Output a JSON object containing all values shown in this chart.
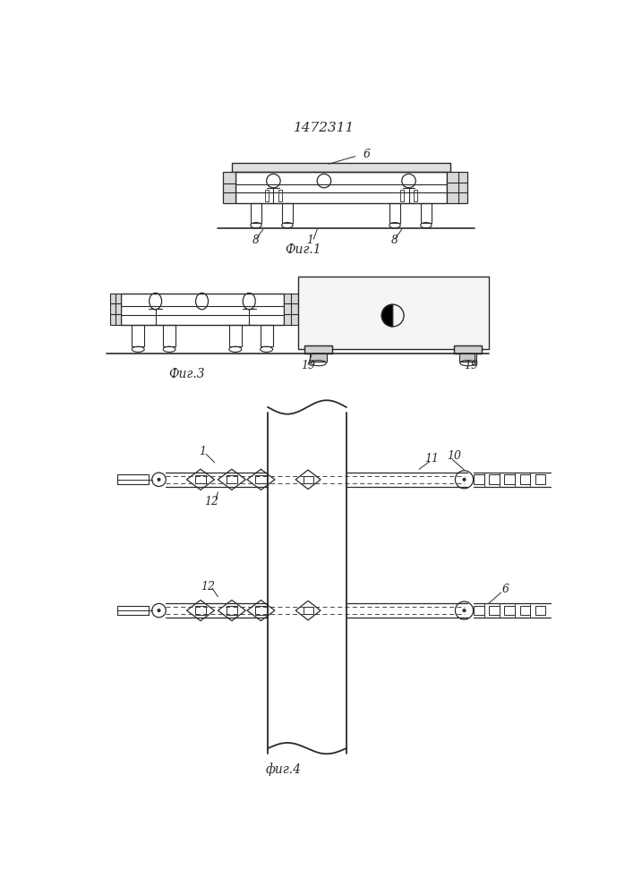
{
  "title": "1472311",
  "fig1_label": "Фиг.1",
  "fig3_label": "Фиг.3",
  "fig4_label": "фиг.4",
  "bg_color": "#ffffff",
  "line_color": "#2a2a2a"
}
